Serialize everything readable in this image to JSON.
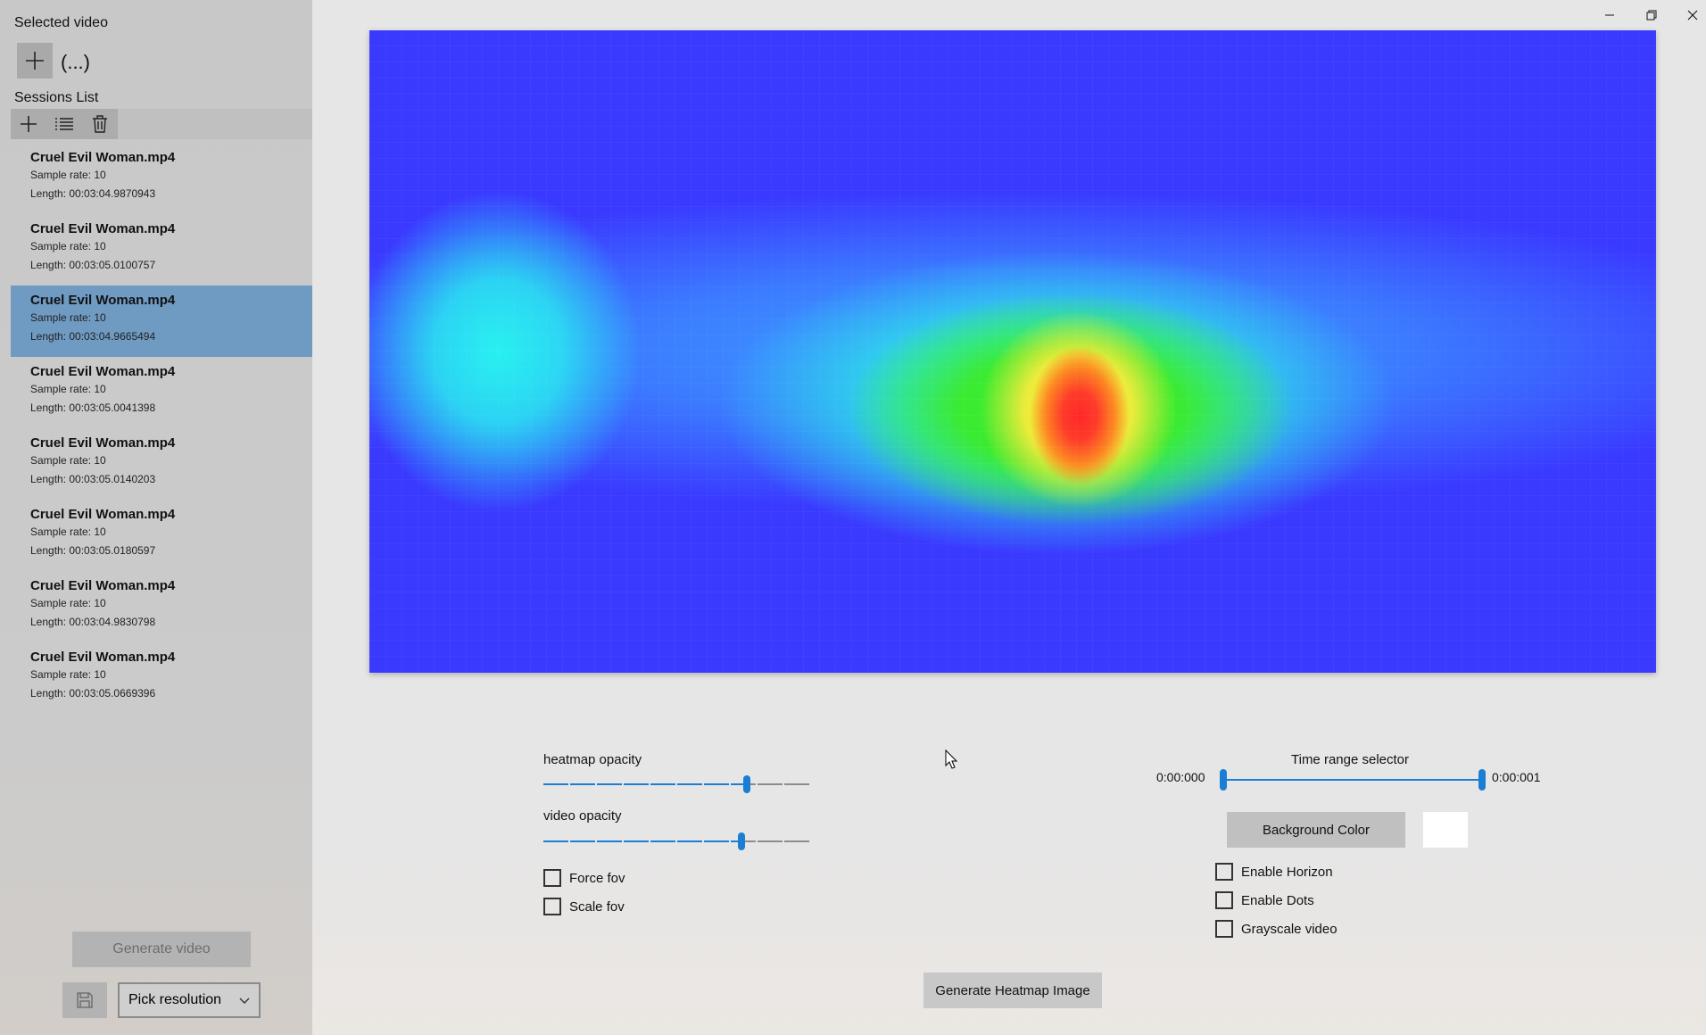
{
  "sidebar": {
    "selected_video_title": "Selected video",
    "video_name": "(...)",
    "sessions_title": "Sessions List",
    "toolbar": {
      "add_icon": "plus-icon",
      "list_icon": "list-icon",
      "delete_icon": "trash-icon"
    },
    "sessions": [
      {
        "name": "Cruel Evil Woman.mp4",
        "sample_rate": "Sample rate: 10",
        "length": "Length: 00:03:04.9870943"
      },
      {
        "name": "Cruel Evil Woman.mp4",
        "sample_rate": "Sample rate: 10",
        "length": "Length: 00:03:05.0100757"
      },
      {
        "name": "Cruel Evil Woman.mp4",
        "sample_rate": "Sample rate: 10",
        "length": "Length: 00:03:04.9665494"
      },
      {
        "name": "Cruel Evil Woman.mp4",
        "sample_rate": "Sample rate: 10",
        "length": "Length: 00:03:05.0041398"
      },
      {
        "name": "Cruel Evil Woman.mp4",
        "sample_rate": "Sample rate: 10",
        "length": "Length: 00:03:05.0140203"
      },
      {
        "name": "Cruel Evil Woman.mp4",
        "sample_rate": "Sample rate: 10",
        "length": "Length: 00:03:05.0180597"
      },
      {
        "name": "Cruel Evil Woman.mp4",
        "sample_rate": "Sample rate: 10",
        "length": "Length: 00:03:04.9830798"
      },
      {
        "name": "Cruel Evil Woman.mp4",
        "sample_rate": "Sample rate: 10",
        "length": "Length: 00:03:05.0669396"
      }
    ],
    "selected_session_index": 2,
    "generate_video_label": "Generate video",
    "resolution_value": "Pick resolution"
  },
  "controls": {
    "heatmap_opacity_label": "heatmap opacity",
    "heatmap_opacity_value": 0.76,
    "video_opacity_label": "video opacity",
    "video_opacity_value": 0.74,
    "force_fov_label": "Force fov",
    "scale_fov_label": "Scale fov",
    "time_range_label": "Time range selector",
    "time_start": "0:00:000",
    "time_end": "0:00:001",
    "background_color_label": "Background Color",
    "background_color_value": "#ffffff",
    "enable_horizon_label": "Enable Horizon",
    "enable_dots_label": "Enable Dots",
    "grayscale_video_label": "Grayscale video",
    "generate_heatmap_label": "Generate Heatmap Image"
  },
  "colors": {
    "accent": "#1a7fd4",
    "selected_row": "#6f9ac2",
    "heatmap_base": "#3a3aff"
  }
}
